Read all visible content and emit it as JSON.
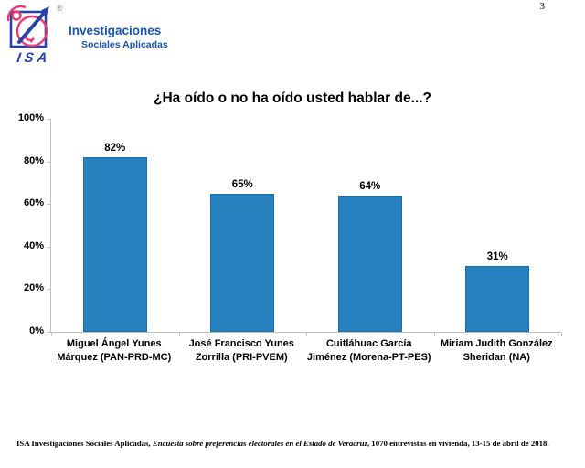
{
  "page": {
    "number": "3"
  },
  "logo": {
    "monogram": "ISA",
    "registered_mark": "®",
    "company_line1": "Investigaciones",
    "company_line2": "Sociales Aplicadas",
    "colors": {
      "blue": "#2743A5",
      "pink": "#EA3A6E",
      "text_blue": "#1A55A8",
      "registered_gray": "#8C8C8C"
    }
  },
  "chart_data": {
    "type": "bar",
    "title": "¿Ha oído o no ha oído usted hablar de...?",
    "categories": [
      "Miguel Ángel Yunes Márquez (PAN-PRD-MC)",
      "José Francisco Yunes Zorrilla (PRI-PVEM)",
      "Cuitláhuac García Jiménez (Morena-PT-PES)",
      "Miriam Judith González Sheridan (NA)"
    ],
    "category_label_lines": [
      [
        "Miguel Ángel Yunes",
        "Márquez (PAN-PRD-MC)"
      ],
      [
        "José Francisco Yunes",
        "Zorrilla (PRI-PVEM)"
      ],
      [
        "Cuitláhuac García",
        "Jiménez (Morena-PT-PES)"
      ],
      [
        "Miriam Judith González",
        "Sheridan (NA)"
      ]
    ],
    "values": [
      82,
      65,
      64,
      31
    ],
    "value_labels": [
      "82%",
      "65%",
      "64%",
      "31%"
    ],
    "xlabel": "",
    "ylabel": "",
    "ylim": [
      0,
      100
    ],
    "ytick_labels": [
      "0%",
      "20%",
      "40%",
      "60%",
      "80%",
      "100%"
    ],
    "grid": false,
    "legend": false,
    "bar_color": "#2781BE",
    "axis_color": "#BFBFBF"
  },
  "footer": {
    "source_normal1": "ISA Investigaciones Sociales Aplicadas, ",
    "source_italic": "Encuesta sobre preferencias electorales en el Estado de Veracruz",
    "source_normal2": ", 1070 entrevistas en vivienda, 13-15 de abril de 2018."
  }
}
